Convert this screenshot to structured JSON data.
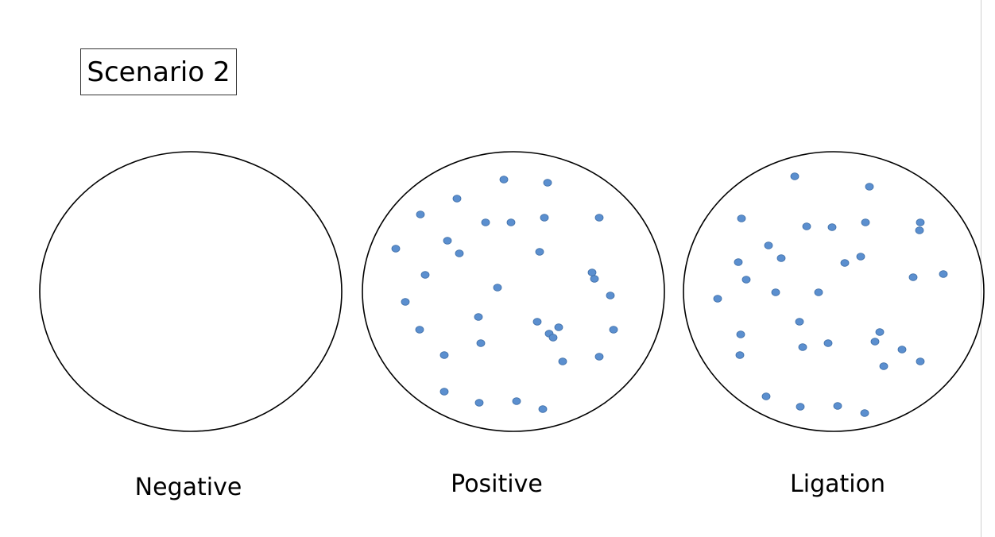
{
  "title": "Scenario 2",
  "colors": {
    "colony": "#5b8fcf",
    "colony_stroke": "#3f6fa8",
    "plate_outline": "#000000"
  },
  "plates": [
    {
      "label": "Negative",
      "colony_count": 0
    },
    {
      "label": "Positive",
      "colony_count": 34
    },
    {
      "label": "Ligation",
      "colony_count": 36
    }
  ]
}
